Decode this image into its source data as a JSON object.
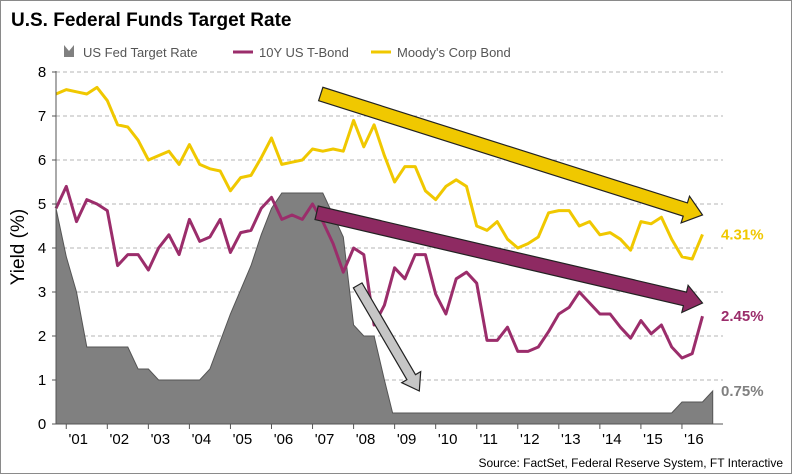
{
  "chart_data": {
    "type": "line",
    "title": "U.S. Federal Funds Target Rate",
    "ylabel": "Yield (%)",
    "xlabel": "",
    "ylim": [
      0,
      8
    ],
    "yticks": [
      "0",
      "1",
      "2",
      "3",
      "4",
      "5",
      "6",
      "7",
      "8"
    ],
    "xlim": [
      2000.75,
      2017.0
    ],
    "xticks": [
      {
        "label": "'01",
        "x": 2001.0
      },
      {
        "label": "'02",
        "x": 2002.0
      },
      {
        "label": "'03",
        "x": 2003.0
      },
      {
        "label": "'04",
        "x": 2004.0
      },
      {
        "label": "'05",
        "x": 2005.0
      },
      {
        "label": "'06",
        "x": 2006.0
      },
      {
        "label": "'07",
        "x": 2007.0
      },
      {
        "label": "'08",
        "x": 2008.0
      },
      {
        "label": "'09",
        "x": 2009.0
      },
      {
        "label": "'10",
        "x": 2010.0
      },
      {
        "label": "'11",
        "x": 2011.0
      },
      {
        "label": "'12",
        "x": 2012.0
      },
      {
        "label": "'13",
        "x": 2013.0
      },
      {
        "label": "'14",
        "x": 2014.0
      },
      {
        "label": "'15",
        "x": 2015.0
      },
      {
        "label": "'16",
        "x": 2016.0
      }
    ],
    "grid": "horizontal-dashed",
    "legend_position": "top",
    "series": [
      {
        "name": "US Fed Target Rate",
        "style": "area",
        "color": "#808080",
        "end_label": "0.75%",
        "points": [
          [
            2000.75,
            4.9
          ],
          [
            2001.0,
            3.8
          ],
          [
            2001.25,
            3.0
          ],
          [
            2001.5,
            1.75
          ],
          [
            2002.0,
            1.75
          ],
          [
            2002.5,
            1.75
          ],
          [
            2002.75,
            1.25
          ],
          [
            2003.0,
            1.25
          ],
          [
            2003.25,
            1.0
          ],
          [
            2003.5,
            1.0
          ],
          [
            2004.0,
            1.0
          ],
          [
            2004.25,
            1.0
          ],
          [
            2004.5,
            1.25
          ],
          [
            2005.0,
            2.5
          ],
          [
            2005.5,
            3.6
          ],
          [
            2005.75,
            4.3
          ],
          [
            2006.0,
            4.9
          ],
          [
            2006.25,
            5.25
          ],
          [
            2007.0,
            5.25
          ],
          [
            2007.25,
            5.25
          ],
          [
            2007.5,
            4.75
          ],
          [
            2007.75,
            4.25
          ],
          [
            2008.0,
            2.25
          ],
          [
            2008.25,
            2.0
          ],
          [
            2008.5,
            2.0
          ],
          [
            2008.75,
            1.0
          ],
          [
            2008.95,
            0.25
          ],
          [
            2015.75,
            0.25
          ],
          [
            2016.0,
            0.5
          ],
          [
            2016.5,
            0.5
          ],
          [
            2016.75,
            0.75
          ]
        ]
      },
      {
        "name": "10Y US T-Bond",
        "style": "line",
        "color": "#9b2d6b",
        "end_label": "2.45%",
        "points": [
          [
            2000.75,
            4.9
          ],
          [
            2001.0,
            5.4
          ],
          [
            2001.25,
            4.6
          ],
          [
            2001.5,
            5.1
          ],
          [
            2001.75,
            5.0
          ],
          [
            2002.0,
            4.85
          ],
          [
            2002.25,
            3.6
          ],
          [
            2002.5,
            3.85
          ],
          [
            2002.75,
            3.85
          ],
          [
            2003.0,
            3.5
          ],
          [
            2003.25,
            4.0
          ],
          [
            2003.5,
            4.3
          ],
          [
            2003.75,
            3.85
          ],
          [
            2004.0,
            4.65
          ],
          [
            2004.25,
            4.15
          ],
          [
            2004.5,
            4.25
          ],
          [
            2004.75,
            4.65
          ],
          [
            2005.0,
            3.9
          ],
          [
            2005.25,
            4.35
          ],
          [
            2005.5,
            4.4
          ],
          [
            2005.75,
            4.9
          ],
          [
            2006.0,
            5.15
          ],
          [
            2006.25,
            4.65
          ],
          [
            2006.5,
            4.75
          ],
          [
            2006.75,
            4.65
          ],
          [
            2007.0,
            5.0
          ],
          [
            2007.25,
            4.6
          ],
          [
            2007.5,
            4.1
          ],
          [
            2007.75,
            3.45
          ],
          [
            2008.0,
            4.0
          ],
          [
            2008.25,
            3.85
          ],
          [
            2008.5,
            2.25
          ],
          [
            2008.75,
            2.7
          ],
          [
            2009.0,
            3.55
          ],
          [
            2009.25,
            3.3
          ],
          [
            2009.5,
            3.85
          ],
          [
            2009.75,
            3.85
          ],
          [
            2010.0,
            2.95
          ],
          [
            2010.25,
            2.5
          ],
          [
            2010.5,
            3.3
          ],
          [
            2010.75,
            3.45
          ],
          [
            2011.0,
            3.2
          ],
          [
            2011.25,
            1.9
          ],
          [
            2011.5,
            1.9
          ],
          [
            2011.75,
            2.2
          ],
          [
            2012.0,
            1.65
          ],
          [
            2012.25,
            1.65
          ],
          [
            2012.5,
            1.75
          ],
          [
            2012.75,
            2.1
          ],
          [
            2013.0,
            2.5
          ],
          [
            2013.25,
            2.65
          ],
          [
            2013.5,
            3.0
          ],
          [
            2013.75,
            2.75
          ],
          [
            2014.0,
            2.5
          ],
          [
            2014.25,
            2.5
          ],
          [
            2014.5,
            2.2
          ],
          [
            2014.75,
            1.95
          ],
          [
            2015.0,
            2.35
          ],
          [
            2015.25,
            2.05
          ],
          [
            2015.5,
            2.25
          ],
          [
            2015.75,
            1.75
          ],
          [
            2016.0,
            1.5
          ],
          [
            2016.25,
            1.6
          ],
          [
            2016.5,
            2.45
          ]
        ]
      },
      {
        "name": "Moody's Corp Bond",
        "style": "line",
        "color": "#f0c800",
        "end_label": "4.31%",
        "points": [
          [
            2000.75,
            7.5
          ],
          [
            2001.0,
            7.6
          ],
          [
            2001.25,
            7.55
          ],
          [
            2001.5,
            7.5
          ],
          [
            2001.75,
            7.65
          ],
          [
            2002.0,
            7.35
          ],
          [
            2002.25,
            6.8
          ],
          [
            2002.5,
            6.75
          ],
          [
            2002.75,
            6.45
          ],
          [
            2003.0,
            6.0
          ],
          [
            2003.25,
            6.1
          ],
          [
            2003.5,
            6.2
          ],
          [
            2003.75,
            5.9
          ],
          [
            2004.0,
            6.35
          ],
          [
            2004.25,
            5.9
          ],
          [
            2004.5,
            5.8
          ],
          [
            2004.75,
            5.75
          ],
          [
            2005.0,
            5.3
          ],
          [
            2005.25,
            5.6
          ],
          [
            2005.5,
            5.65
          ],
          [
            2005.75,
            6.05
          ],
          [
            2006.0,
            6.5
          ],
          [
            2006.25,
            5.9
          ],
          [
            2006.5,
            5.95
          ],
          [
            2006.75,
            6.0
          ],
          [
            2007.0,
            6.25
          ],
          [
            2007.25,
            6.2
          ],
          [
            2007.5,
            6.25
          ],
          [
            2007.75,
            6.2
          ],
          [
            2008.0,
            6.9
          ],
          [
            2008.25,
            6.3
          ],
          [
            2008.5,
            6.8
          ],
          [
            2008.75,
            6.1
          ],
          [
            2009.0,
            5.5
          ],
          [
            2009.25,
            5.85
          ],
          [
            2009.5,
            5.85
          ],
          [
            2009.75,
            5.3
          ],
          [
            2010.0,
            5.1
          ],
          [
            2010.25,
            5.4
          ],
          [
            2010.5,
            5.55
          ],
          [
            2010.75,
            5.4
          ],
          [
            2011.0,
            4.5
          ],
          [
            2011.25,
            4.4
          ],
          [
            2011.5,
            4.6
          ],
          [
            2011.75,
            4.2
          ],
          [
            2012.0,
            4.0
          ],
          [
            2012.25,
            4.1
          ],
          [
            2012.5,
            4.25
          ],
          [
            2012.75,
            4.8
          ],
          [
            2013.0,
            4.85
          ],
          [
            2013.25,
            4.85
          ],
          [
            2013.5,
            4.5
          ],
          [
            2013.75,
            4.6
          ],
          [
            2014.0,
            4.3
          ],
          [
            2014.25,
            4.35
          ],
          [
            2014.5,
            4.2
          ],
          [
            2014.75,
            3.95
          ],
          [
            2015.0,
            4.6
          ],
          [
            2015.25,
            4.55
          ],
          [
            2015.5,
            4.7
          ],
          [
            2015.75,
            4.2
          ],
          [
            2016.0,
            3.8
          ],
          [
            2016.25,
            3.75
          ],
          [
            2016.5,
            4.31
          ]
        ]
      }
    ],
    "annotations": [
      {
        "type": "arrow",
        "color": "#f0c800",
        "from": [
          2007.2,
          7.5
        ],
        "to": [
          2016.5,
          4.75
        ]
      },
      {
        "type": "arrow",
        "color": "#8e2a62",
        "from": [
          2007.1,
          4.8
        ],
        "to": [
          2016.5,
          2.75
        ]
      },
      {
        "type": "arrow",
        "color": "#c6c6c6",
        "from": [
          2008.1,
          3.15
        ],
        "to": [
          2009.6,
          0.75
        ]
      }
    ],
    "source": "Source: FactSet, Federal Reserve System, FT Interactive"
  }
}
